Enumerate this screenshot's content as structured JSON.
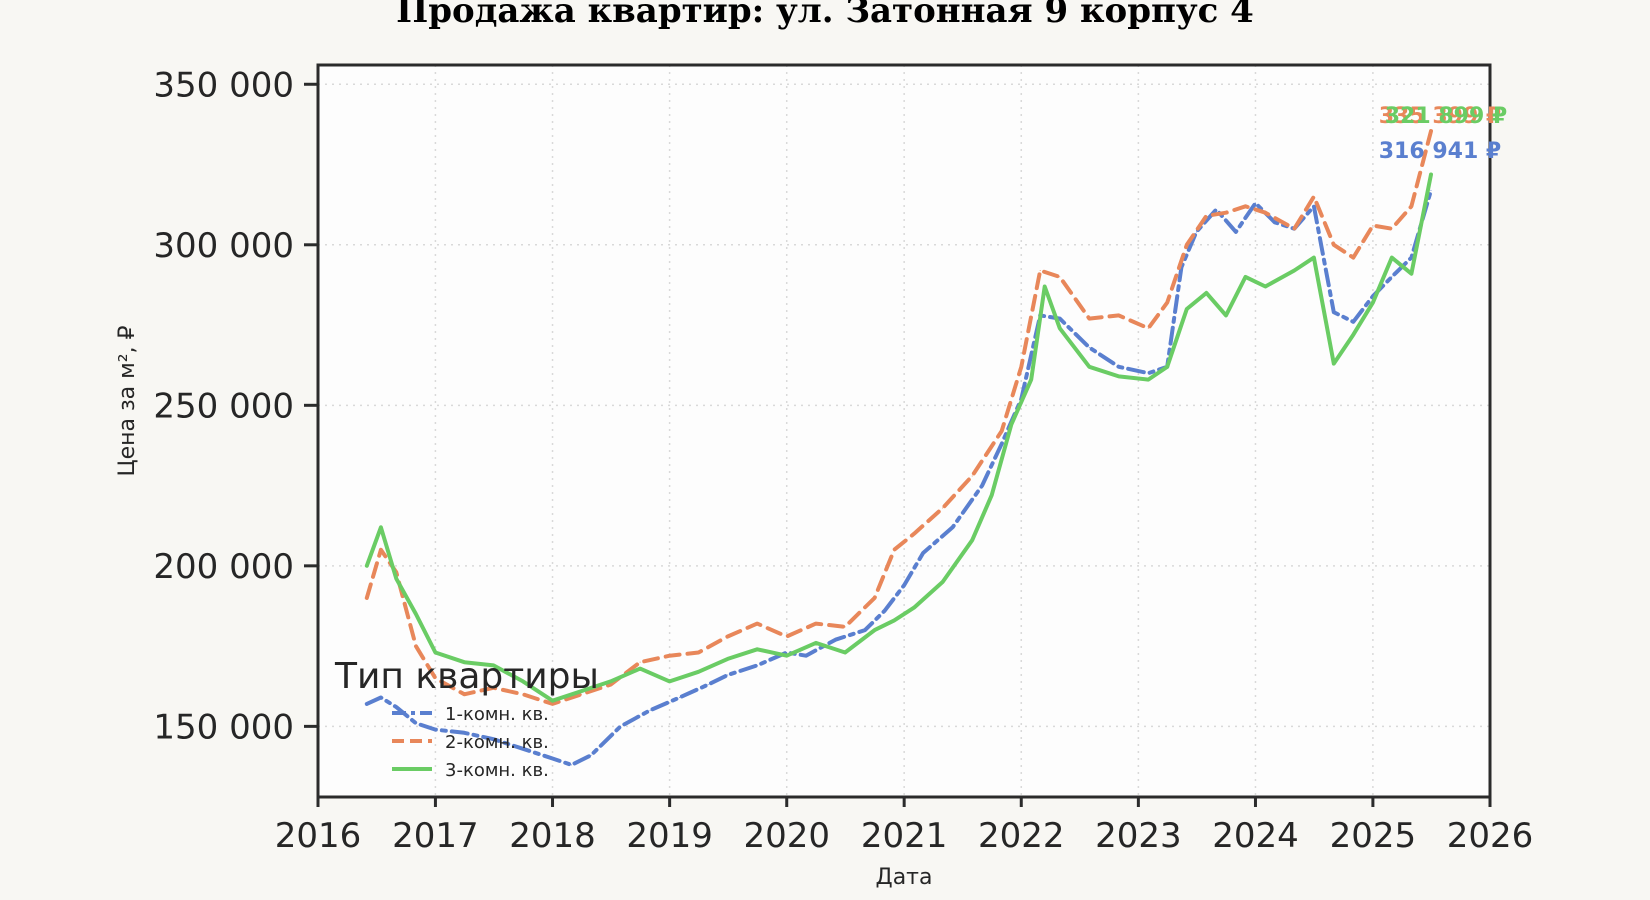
{
  "chart_data": {
    "type": "line",
    "title": "Продажа квартир: ул. Затонная 9 корпус 4",
    "xlabel": "Дата",
    "ylabel": "Цена за м², ₽",
    "xlim": [
      "2016-01-01",
      "2026-01-01"
    ],
    "ylim": [
      128000,
      356000
    ],
    "x_ticks": [
      "2016",
      "2017",
      "2018",
      "2019",
      "2020",
      "2021",
      "2022",
      "2023",
      "2024",
      "2025",
      "2026"
    ],
    "y_ticks": [
      150000,
      200000,
      250000,
      300000,
      350000
    ],
    "y_tick_labels": [
      "150 000",
      "200 000",
      "250 000",
      "300 000",
      "350 000"
    ],
    "grid": true,
    "legend": {
      "title": "Тип квартиры",
      "placement": "lower-left"
    },
    "series": [
      {
        "name": "1-комн. кв.",
        "color": "#5a7fcf",
        "dash": "dashdot",
        "end_label": "316 941 ₽",
        "x": [
          "2016-06-01",
          "2016-07-15",
          "2016-09-01",
          "2016-11-01",
          "2017-01-01",
          "2017-04-01",
          "2017-07-01",
          "2017-10-01",
          "2018-01-01",
          "2018-03-01",
          "2018-05-01",
          "2018-08-01",
          "2018-11-01",
          "2019-02-01",
          "2019-05-01",
          "2019-07-01",
          "2019-10-01",
          "2020-01-01",
          "2020-03-01",
          "2020-06-01",
          "2020-09-01",
          "2020-11-01",
          "2021-01-01",
          "2021-03-01",
          "2021-06-01",
          "2021-09-01",
          "2021-11-01",
          "2022-01-01",
          "2022-03-01",
          "2022-05-01",
          "2022-08-01",
          "2022-11-01",
          "2023-02-01",
          "2023-04-01",
          "2023-05-15",
          "2023-07-01",
          "2023-09-01",
          "2023-11-01",
          "2024-01-01",
          "2024-03-01",
          "2024-05-01",
          "2024-07-01",
          "2024-09-01",
          "2024-11-01",
          "2025-01-01",
          "2025-03-01",
          "2025-05-01",
          "2025-07-01"
        ],
        "values": [
          157000,
          159000,
          156000,
          151000,
          149000,
          148000,
          146000,
          143000,
          140000,
          138000,
          141000,
          150000,
          155000,
          159000,
          163000,
          166000,
          169000,
          173000,
          172000,
          177000,
          180000,
          186000,
          194000,
          204000,
          212000,
          225000,
          238000,
          252000,
          278000,
          277000,
          268000,
          262000,
          260000,
          262000,
          293000,
          304000,
          311000,
          304000,
          313000,
          307000,
          305000,
          312000,
          279000,
          276000,
          284000,
          290000,
          296000,
          316941
        ]
      },
      {
        "name": "2-комн. кв.",
        "color": "#e8875a",
        "dash": "dashed",
        "end_label": "335 399 ₽",
        "x": [
          "2016-06-01",
          "2016-07-15",
          "2016-09-01",
          "2016-11-01",
          "2017-01-01",
          "2017-04-01",
          "2017-07-01",
          "2017-10-01",
          "2018-01-01",
          "2018-04-01",
          "2018-07-01",
          "2018-10-01",
          "2019-01-01",
          "2019-04-01",
          "2019-07-01",
          "2019-10-01",
          "2020-01-01",
          "2020-04-01",
          "2020-07-01",
          "2020-10-01",
          "2020-12-01",
          "2021-02-01",
          "2021-05-01",
          "2021-08-01",
          "2021-11-01",
          "2022-01-01",
          "2022-03-01",
          "2022-05-01",
          "2022-08-01",
          "2022-11-01",
          "2023-02-01",
          "2023-04-01",
          "2023-06-01",
          "2023-08-01",
          "2023-10-01",
          "2023-12-01",
          "2024-02-01",
          "2024-05-01",
          "2024-07-01",
          "2024-09-01",
          "2024-11-01",
          "2025-01-01",
          "2025-03-01",
          "2025-05-01",
          "2025-07-01"
        ],
        "values": [
          190000,
          205000,
          198000,
          175000,
          165000,
          160000,
          162000,
          160000,
          157000,
          160000,
          163000,
          170000,
          172000,
          173000,
          178000,
          182000,
          178000,
          182000,
          181000,
          190000,
          205000,
          210000,
          218000,
          228000,
          242000,
          262000,
          292000,
          290000,
          277000,
          278000,
          274000,
          282000,
          300000,
          309000,
          310000,
          312000,
          310000,
          305000,
          315000,
          300000,
          296000,
          306000,
          305000,
          312000,
          335399
        ]
      },
      {
        "name": "3-комн. кв.",
        "color": "#6acc64",
        "dash": "solid",
        "end_label": "321 899 ₽",
        "x": [
          "2016-06-01",
          "2016-07-15",
          "2016-09-01",
          "2016-11-01",
          "2017-01-01",
          "2017-04-01",
          "2017-07-01",
          "2017-10-01",
          "2018-01-01",
          "2018-04-01",
          "2018-07-01",
          "2018-10-01",
          "2019-01-01",
          "2019-04-01",
          "2019-07-01",
          "2019-10-01",
          "2020-01-01",
          "2020-04-01",
          "2020-07-01",
          "2020-10-01",
          "2020-12-01",
          "2021-02-01",
          "2021-05-01",
          "2021-08-01",
          "2021-10-01",
          "2021-12-01",
          "2022-02-01",
          "2022-03-15",
          "2022-05-01",
          "2022-08-01",
          "2022-11-01",
          "2023-02-01",
          "2023-04-01",
          "2023-06-01",
          "2023-08-01",
          "2023-10-01",
          "2023-12-01",
          "2024-02-01",
          "2024-05-01",
          "2024-07-01",
          "2024-09-01",
          "2024-11-01",
          "2025-01-01",
          "2025-03-01",
          "2025-05-01",
          "2025-07-01"
        ],
        "values": [
          200000,
          212000,
          196000,
          185000,
          173000,
          170000,
          169000,
          164000,
          158000,
          161000,
          164000,
          168000,
          164000,
          167000,
          171000,
          174000,
          172000,
          176000,
          173000,
          180000,
          183000,
          187000,
          195000,
          208000,
          222000,
          244000,
          258000,
          287000,
          274000,
          262000,
          259000,
          258000,
          262000,
          280000,
          285000,
          278000,
          290000,
          287000,
          292000,
          296000,
          263000,
          272000,
          282000,
          296000,
          291000,
          321899
        ]
      }
    ]
  }
}
